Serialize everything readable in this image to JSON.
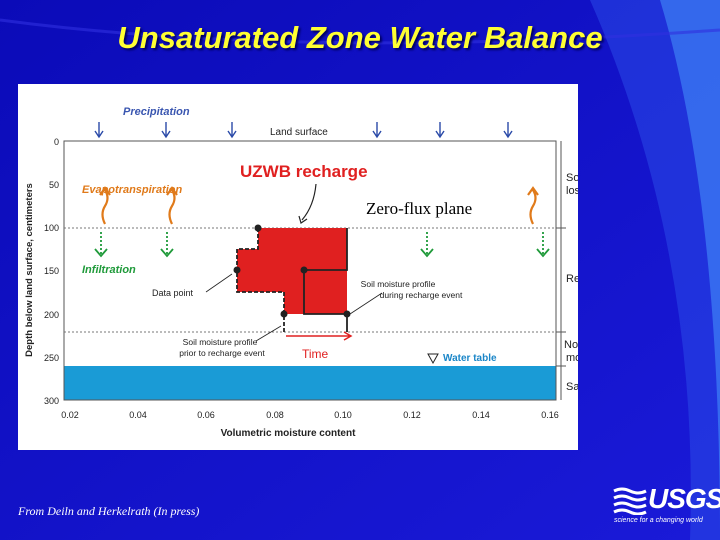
{
  "slide": {
    "title": "Unsaturated Zone Water Balance",
    "citation": "From Deiln and Herkelrath (In press)",
    "logo_text": "USGS",
    "logo_tagline": "science for a changing world"
  },
  "colors": {
    "background": "#1010c8",
    "title": "#ffff33",
    "recharge_fill": "#e02020",
    "saturated_zone": "#1a9bd6",
    "precip_arrow": "#2a4aa8",
    "et_arrow": "#e07a1a",
    "infiltration_arrow": "#1f9a3a"
  },
  "diagram": {
    "labels": {
      "precipitation": "Precipitation",
      "land_surface": "Land surface",
      "evapotranspiration": "Evapotranspiration",
      "uzwb_recharge": "UZWB recharge",
      "zero_flux": "Zero-flux plane",
      "infiltration": "Infiltration",
      "data_point": "Data point",
      "profile_during_1": "Soil moisture profile",
      "profile_during_2": "during recharge event",
      "profile_prior_1": "Soil moisture profile",
      "profile_prior_2": "prior to recharge event",
      "time": "Time",
      "water_table": "Water table"
    },
    "zones": {
      "soil_moisture_lost_1": "Soil moisture",
      "soil_moisture_lost_2": "lost to ET",
      "recharge_zone": "Recharge zone",
      "no_change_1": "No change in volumetric",
      "no_change_2": "moisture content",
      "saturated_zone": "Saturated zone"
    },
    "axes": {
      "y_label": "Depth below land surface, centimeters",
      "x_label": "Volumetric moisture content",
      "y_ticks": [
        "0",
        "50",
        "100",
        "150",
        "200",
        "250",
        "300"
      ],
      "x_ticks": [
        "0.02",
        "0.04",
        "0.06",
        "0.08",
        "0.10",
        "0.12",
        "0.14",
        "0.16"
      ]
    }
  }
}
